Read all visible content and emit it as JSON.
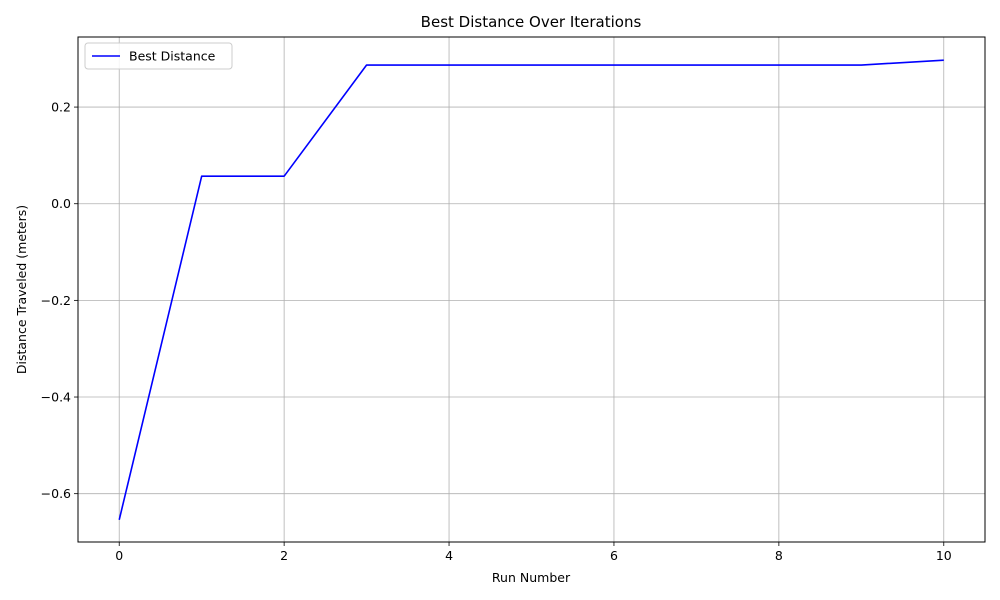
{
  "chart_data": {
    "type": "line",
    "title": "Best Distance Over Iterations",
    "xlabel": "Run Number",
    "ylabel": "Distance Traveled (meters)",
    "x": [
      0,
      1,
      2,
      3,
      4,
      5,
      6,
      7,
      8,
      9,
      10
    ],
    "series": [
      {
        "name": "Best Distance",
        "color": "#0000ff",
        "values": [
          -0.654,
          0.057,
          0.057,
          0.287,
          0.287,
          0.287,
          0.287,
          0.287,
          0.287,
          0.287,
          0.297
        ]
      }
    ],
    "xlim": [
      -0.5,
      10.5
    ],
    "ylim": [
      -0.7,
      0.345
    ],
    "xticks": [
      0,
      2,
      4,
      6,
      8,
      10
    ],
    "xtick_labels": [
      "0",
      "2",
      "4",
      "6",
      "8",
      "10"
    ],
    "yticks": [
      -0.6,
      -0.4,
      -0.2,
      0.0,
      0.2
    ],
    "ytick_labels": [
      "−0.6",
      "−0.4",
      "−0.2",
      "0.0",
      "0.2"
    ],
    "grid": true,
    "legend_position": "top-left"
  }
}
